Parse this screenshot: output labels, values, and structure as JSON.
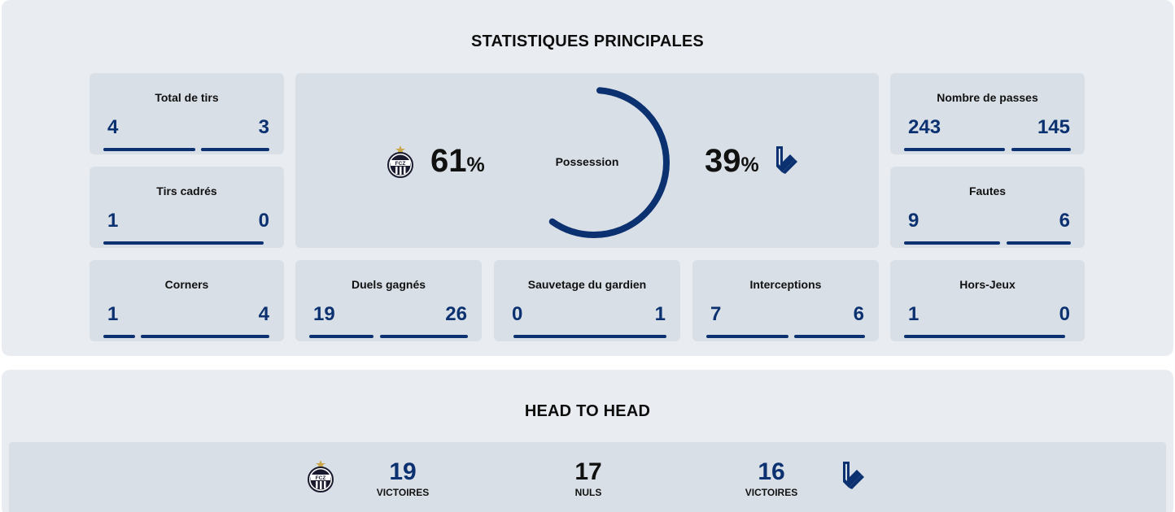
{
  "stats": {
    "title": "STATISTIQUES PRINCIPALES",
    "total_tirs": {
      "label": "Total de tirs",
      "home": "4",
      "away": "3"
    },
    "tirs_cadres": {
      "label": "Tirs cadrés",
      "home": "1",
      "away": "0"
    },
    "corners": {
      "label": "Corners",
      "home": "1",
      "away": "4"
    },
    "duels": {
      "label": "Duels gagnés",
      "home": "19",
      "away": "26"
    },
    "sauvetage": {
      "label": "Sauvetage du gardien",
      "home": "0",
      "away": "1"
    },
    "interceptions": {
      "label": "Interceptions",
      "home": "7",
      "away": "6"
    },
    "passes": {
      "label": "Nombre de passes",
      "home": "243",
      "away": "145"
    },
    "fautes": {
      "label": "Fautes",
      "home": "9",
      "away": "6"
    },
    "hors_jeux": {
      "label": "Hors-Jeux",
      "home": "1",
      "away": "0"
    },
    "possession": {
      "label": "Possession",
      "home": "61",
      "away": "39",
      "unit": "%",
      "home_fraction": 0.61
    }
  },
  "head_to_head": {
    "title": "HEAD TO HEAD",
    "home_wins": "19",
    "home_wins_label": "VICTOIRES",
    "draws": "17",
    "draws_label": "NULS",
    "away_wins": "16",
    "away_wins_label": "VICTOIRES"
  },
  "teams": {
    "home_logo_text": "FCZ",
    "home_logo_icon": "fcz-crest-icon",
    "away_logo_icon": "lausanne-ls-icon"
  },
  "colors": {
    "accent": "#0b3170",
    "card": "#d9dfe6",
    "panel": "#e9edf2",
    "star": "#c9a74a"
  }
}
